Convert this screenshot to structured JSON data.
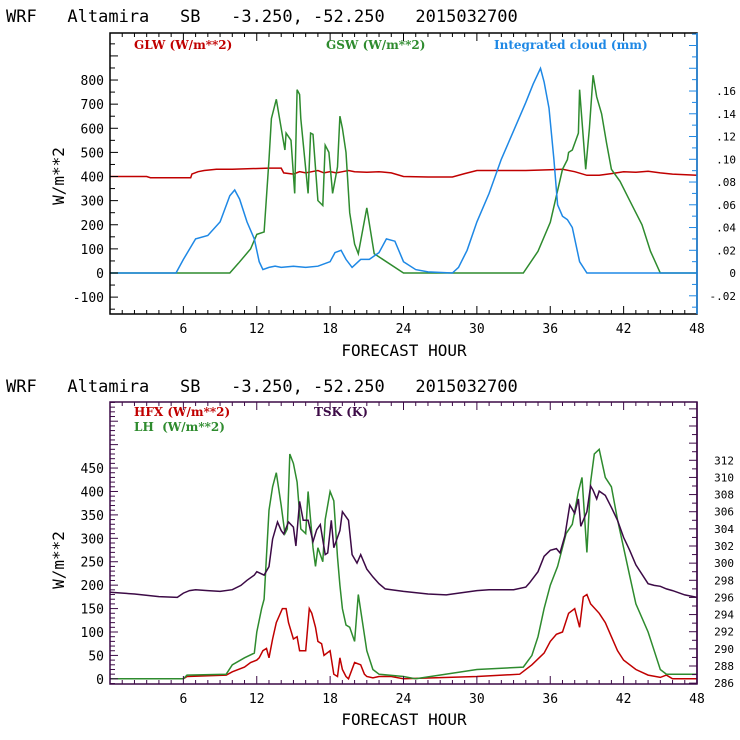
{
  "chart_data": [
    {
      "type": "line",
      "title": "WRF   Altamira   SB   -3.250, -52.250   2015032700",
      "xlabel": "FORECAST HOUR",
      "ylabel": "W/m**2",
      "xlim": [
        0,
        48
      ],
      "ylim": [
        -170,
        995
      ],
      "y2lim": [
        -0.036,
        0.211
      ],
      "x_ticks": [
        6,
        12,
        18,
        24,
        30,
        36,
        42,
        48
      ],
      "y_ticks": [
        -100,
        0,
        100,
        200,
        300,
        400,
        500,
        600,
        700,
        800
      ],
      "y_tick_labels": [
        "-100",
        "0",
        "100",
        "200",
        "300",
        "400",
        "500",
        "600",
        "700",
        "800"
      ],
      "y2_ticks": [
        -0.02,
        0,
        0.02,
        0.04,
        0.06,
        0.08,
        0.1,
        0.12,
        0.14,
        0.16
      ],
      "y2_tick_labels": [
        "-.02",
        "0",
        ".02",
        ".04",
        ".06",
        ".08",
        ".10",
        ".12",
        ".14",
        ".16"
      ],
      "axis_color": "#000000",
      "right_axis_color": "#1e88e5",
      "legend_placement": "top",
      "series": [
        {
          "name": "GLW (W/m**2)",
          "axis": "left",
          "color": "#c00000",
          "x": [
            0,
            3,
            3.3,
            6.6,
            6.7,
            7.2,
            7.7,
            8.7,
            10,
            13,
            14,
            14.2,
            15,
            15.5,
            16,
            16.5,
            17,
            17.5,
            18,
            18.5,
            19,
            19.5,
            20,
            21,
            22,
            23,
            24,
            26,
            28,
            29,
            30,
            34,
            36,
            37,
            38,
            39,
            40,
            41,
            42,
            43,
            44,
            45,
            46,
            48
          ],
          "y": [
            400,
            400,
            395,
            395,
            410,
            420,
            425,
            430,
            430,
            435,
            435,
            415,
            410,
            420,
            415,
            420,
            425,
            415,
            420,
            415,
            420,
            425,
            420,
            418,
            420,
            415,
            400,
            398,
            398,
            412,
            425,
            425,
            428,
            430,
            420,
            405,
            405,
            412,
            420,
            418,
            422,
            415,
            410,
            405
          ]
        },
        {
          "name": "GSW (W/m**2)",
          "axis": "left",
          "color": "#2e8b2e",
          "x": [
            0,
            9.8,
            10.5,
            11.5,
            12,
            12.6,
            13,
            13.2,
            13.6,
            14.3,
            14.4,
            14.8,
            15.1,
            15.3,
            15.5,
            15.6,
            16.2,
            16.4,
            16.6,
            17,
            17.4,
            17.6,
            17.9,
            18.2,
            18.6,
            18.8,
            19,
            19.3,
            19.6,
            20,
            20.3,
            21,
            21.6,
            24,
            33.8,
            35,
            36,
            37,
            37.4,
            37.5,
            37.8,
            38.3,
            38.4,
            38.9,
            39.2,
            39.5,
            39.8,
            40.2,
            40.6,
            41,
            41.7,
            42.5,
            43.5,
            44.2,
            45,
            48
          ],
          "y": [
            0,
            0,
            40,
            100,
            160,
            170,
            470,
            640,
            720,
            510,
            580,
            550,
            330,
            760,
            740,
            640,
            330,
            580,
            575,
            300,
            280,
            530,
            500,
            330,
            440,
            650,
            600,
            500,
            250,
            120,
            80,
            270,
            80,
            0,
            0,
            90,
            210,
            430,
            470,
            500,
            510,
            580,
            760,
            430,
            600,
            820,
            730,
            660,
            540,
            430,
            380,
            300,
            200,
            90,
            0,
            0
          ]
        },
        {
          "name": "Integrated cloud (mm)",
          "axis": "right",
          "color": "#1e88e5",
          "x": [
            0,
            5.4,
            6,
            7,
            8,
            9,
            9.8,
            10.2,
            10.6,
            11.2,
            11.8,
            12.2,
            12.5,
            13,
            13.5,
            14,
            15,
            16,
            17,
            18,
            18.4,
            18.9,
            19.3,
            19.8,
            20.5,
            21.2,
            22,
            22.6,
            23.3,
            24,
            25,
            26,
            28,
            28.5,
            29.2,
            30,
            31,
            32,
            33,
            34,
            34.6,
            35.2,
            35.5,
            35.9,
            36.3,
            36.6,
            37,
            37.4,
            37.8,
            38.4,
            39,
            48
          ],
          "y": [
            0,
            0,
            0.012,
            0.03,
            0.033,
            0.045,
            0.068,
            0.073,
            0.065,
            0.045,
            0.03,
            0.01,
            0.003,
            0.005,
            0.006,
            0.005,
            0.006,
            0.005,
            0.006,
            0.01,
            0.018,
            0.02,
            0.012,
            0.005,
            0.012,
            0.012,
            0.018,
            0.03,
            0.028,
            0.01,
            0.003,
            0.001,
            0,
            0.005,
            0.02,
            0.045,
            0.07,
            0.1,
            0.125,
            0.15,
            0.166,
            0.18,
            0.168,
            0.145,
            0.1,
            0.06,
            0.05,
            0.047,
            0.04,
            0.01,
            0,
            0
          ]
        }
      ]
    },
    {
      "type": "line",
      "title": "WRF   Altamira   SB   -3.250, -52.250   2015032700",
      "xlabel": "FORECAST HOUR",
      "ylabel": "W/m**2",
      "xlim": [
        0,
        48
      ],
      "ylim": [
        -11,
        591
      ],
      "y2lim": [
        285.9,
        318.8
      ],
      "x_ticks": [
        6,
        12,
        18,
        24,
        30,
        36,
        42,
        48
      ],
      "y_ticks": [
        0,
        50,
        100,
        150,
        200,
        250,
        300,
        350,
        400,
        450
      ],
      "y_tick_labels": [
        "0",
        "50",
        "100",
        "150",
        "200",
        "250",
        "300",
        "350",
        "400",
        "450"
      ],
      "y2_ticks": [
        286,
        288,
        290,
        292,
        294,
        296,
        298,
        300,
        302,
        304,
        306,
        308,
        310,
        312
      ],
      "y2_tick_labels": [
        "286",
        "288",
        "290",
        "292",
        "294",
        "296",
        "298",
        "300",
        "302",
        "304",
        "306",
        "308",
        "310",
        "312"
      ],
      "axis_color": "#3c0a46",
      "right_axis_color": "#3c0a46",
      "legend_placement": "top-left",
      "series": [
        {
          "name": "HFX (W/m**2)",
          "axis": "left",
          "color": "#c00000",
          "x": [
            0,
            6,
            6.3,
            9.5,
            10,
            11,
            11.5,
            12,
            12.2,
            12.5,
            12.8,
            13,
            13.3,
            13.6,
            14.1,
            14.4,
            14.6,
            15,
            15.3,
            15.5,
            16,
            16.3,
            16.5,
            16.8,
            17,
            17.3,
            17.5,
            18,
            18.3,
            18.6,
            18.8,
            19,
            19.3,
            19.5,
            20,
            20.5,
            20.8,
            21,
            21.5,
            22,
            23,
            24,
            30,
            33.5,
            34.5,
            35.5,
            36,
            36.5,
            37,
            37.5,
            38,
            38.4,
            38.7,
            39,
            39.3,
            40,
            40.5,
            41,
            41.5,
            42,
            43,
            44,
            45,
            45.5,
            46,
            48
          ],
          "y": [
            0,
            0,
            5,
            8,
            15,
            25,
            35,
            40,
            45,
            60,
            65,
            45,
            85,
            120,
            150,
            150,
            120,
            85,
            90,
            60,
            60,
            150,
            140,
            110,
            80,
            75,
            50,
            60,
            10,
            5,
            45,
            20,
            5,
            0,
            35,
            30,
            10,
            5,
            2,
            5,
            5,
            0,
            5,
            10,
            30,
            55,
            80,
            95,
            100,
            140,
            150,
            110,
            175,
            180,
            160,
            140,
            120,
            90,
            60,
            40,
            20,
            8,
            3,
            8,
            0,
            0
          ]
        },
        {
          "name": "LH (W/m**2)",
          "axis": "left",
          "color": "#2e8b2e",
          "x": [
            0,
            3,
            6,
            6.3,
            9.5,
            10,
            11,
            11.8,
            12,
            12.4,
            12.6,
            13,
            13.3,
            13.6,
            14,
            14.3,
            14.5,
            14.7,
            15,
            15.3,
            15.6,
            16,
            16.2,
            16.6,
            16.8,
            17,
            17.4,
            17.6,
            18,
            18.3,
            18.6,
            18.8,
            19,
            19.3,
            19.6,
            20,
            20.3,
            21,
            21.5,
            22,
            24,
            25,
            30,
            33.8,
            34.5,
            35,
            35.5,
            36,
            36.6,
            37.3,
            37.8,
            38.3,
            38.6,
            39,
            39.3,
            39.6,
            40,
            40.5,
            41,
            41.5,
            42,
            42.5,
            43,
            44,
            44.5,
            45,
            45.5,
            48
          ],
          "y": [
            0,
            0,
            0,
            8,
            10,
            30,
            45,
            55,
            100,
            150,
            170,
            360,
            410,
            440,
            370,
            310,
            320,
            480,
            460,
            420,
            320,
            310,
            400,
            280,
            240,
            280,
            250,
            340,
            400,
            380,
            260,
            200,
            150,
            115,
            110,
            80,
            180,
            60,
            20,
            10,
            5,
            0,
            20,
            25,
            50,
            90,
            150,
            200,
            240,
            310,
            330,
            400,
            430,
            270,
            420,
            480,
            490,
            430,
            410,
            340,
            280,
            220,
            160,
            100,
            60,
            20,
            10,
            10
          ]
        },
        {
          "name": "TSK (K)",
          "axis": "right",
          "color": "#3c0a46",
          "x": [
            0,
            2,
            4,
            5.5,
            6,
            6.5,
            7,
            8,
            9,
            10,
            10.7,
            11.2,
            11.8,
            12,
            12.6,
            13,
            13.3,
            13.7,
            14,
            14.2,
            14.6,
            15,
            15.2,
            15.5,
            15.8,
            16.2,
            16.6,
            16.9,
            17.2,
            17.6,
            17.8,
            18.1,
            18.3,
            18.8,
            19,
            19.5,
            19.8,
            20.2,
            20.5,
            21,
            21.5,
            22,
            22.5,
            23,
            24,
            26,
            27.5,
            28,
            30,
            31,
            32,
            33,
            34,
            34.3,
            35,
            35.5,
            36,
            36.5,
            36.8,
            37.2,
            37.6,
            38,
            38.3,
            38.5,
            39,
            39.3,
            39.5,
            39.8,
            40,
            40.5,
            41,
            41.5,
            42,
            42.5,
            43,
            44,
            44.5,
            45,
            45.5,
            46,
            47,
            48
          ],
          "y": [
            296.6,
            296.4,
            296.1,
            296,
            296.5,
            296.8,
            296.9,
            296.8,
            296.7,
            296.9,
            297.4,
            298,
            298.6,
            299,
            298.6,
            299.6,
            302.8,
            304.8,
            303.8,
            303.4,
            304.8,
            304.2,
            302,
            307.2,
            305,
            305,
            302.5,
            303.9,
            304.5,
            301,
            301.2,
            305,
            301.8,
            303.8,
            306,
            305,
            301,
            300,
            301,
            299.3,
            298.4,
            297.6,
            297,
            296.9,
            296.7,
            296.4,
            296.3,
            296.4,
            296.8,
            296.9,
            296.9,
            296.9,
            297.2,
            297.7,
            299,
            300.8,
            301.5,
            301.7,
            301.2,
            303.2,
            306.8,
            305.8,
            307.5,
            304.3,
            306,
            309,
            308.5,
            307.5,
            308.4,
            307.9,
            306.5,
            305,
            303,
            301.5,
            299.8,
            297.6,
            297.4,
            297.3,
            297,
            296.8,
            296.3,
            296
          ]
        }
      ]
    }
  ],
  "plots": [
    {
      "title": "WRF   Altamira   SB   -3.250, -52.250   2015032700",
      "legend": [
        "GLW (W/m**2)",
        "GSW (W/m**2)",
        "Integrated cloud (mm)"
      ],
      "xlabel": "FORECAST HOUR",
      "ylabel": "W/m**2"
    },
    {
      "title": "WRF   Altamira   SB   -3.250, -52.250   2015032700",
      "legend": [
        "HFX (W/m**2)",
        "LH  (W/m**2)",
        "TSK (K)"
      ],
      "xlabel": "FORECAST HOUR",
      "ylabel": "W/m**2"
    }
  ]
}
